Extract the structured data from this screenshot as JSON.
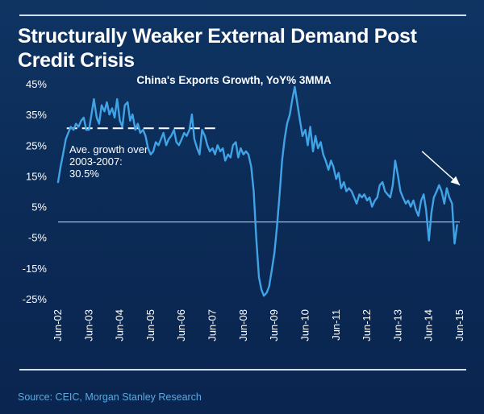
{
  "page": {
    "title": "Structurally Weaker External Demand Post Credit Crisis",
    "source": "Source: CEIC, Morgan Stanley Research"
  },
  "colors": {
    "background": "#0d2a52",
    "line": "#3fa3e6",
    "text": "#ffffff",
    "source": "#5aa9df"
  },
  "chart_data": {
    "type": "line",
    "title": "China's Exports Growth, YoY% 3MMA",
    "xlabel": "",
    "ylabel": "",
    "ylim": [
      -25,
      45
    ],
    "yticks": [
      45,
      35,
      25,
      15,
      5,
      -5,
      -15,
      -25
    ],
    "ytick_labels": [
      "45%",
      "35%",
      "25%",
      "15%",
      "5%",
      "-5%",
      "-15%",
      "-25%"
    ],
    "xlim": [
      2002.42,
      2015.42
    ],
    "xticks": [
      2002.42,
      2003.42,
      2004.42,
      2005.42,
      2006.42,
      2007.42,
      2008.42,
      2009.42,
      2010.42,
      2011.42,
      2012.42,
      2013.42,
      2014.42,
      2015.42
    ],
    "xtick_labels": [
      "Jun-02",
      "Jun-03",
      "Jun-04",
      "Jun-05",
      "Jun-06",
      "Jun-07",
      "Jun-08",
      "Jun-09",
      "Jun-10",
      "Jun-11",
      "Jun-12",
      "Jun-13",
      "Jun-14",
      "Jun-15"
    ],
    "grid": false,
    "series": [
      {
        "name": "",
        "x": [
          2002.42,
          2002.5,
          2002.58,
          2002.67,
          2002.75,
          2002.83,
          2002.92,
          2003.0,
          2003.08,
          2003.17,
          2003.25,
          2003.33,
          2003.42,
          2003.5,
          2003.58,
          2003.67,
          2003.75,
          2003.83,
          2003.92,
          2004.0,
          2004.08,
          2004.17,
          2004.25,
          2004.33,
          2004.42,
          2004.5,
          2004.58,
          2004.67,
          2004.75,
          2004.83,
          2004.92,
          2005.0,
          2005.08,
          2005.17,
          2005.25,
          2005.33,
          2005.42,
          2005.5,
          2005.58,
          2005.67,
          2005.75,
          2005.83,
          2005.92,
          2006.0,
          2006.08,
          2006.17,
          2006.25,
          2006.33,
          2006.42,
          2006.5,
          2006.58,
          2006.67,
          2006.75,
          2006.83,
          2006.92,
          2007.0,
          2007.08,
          2007.17,
          2007.25,
          2007.33,
          2007.42,
          2007.5,
          2007.58,
          2007.67,
          2007.75,
          2007.83,
          2007.92,
          2008.0,
          2008.08,
          2008.17,
          2008.25,
          2008.33,
          2008.42,
          2008.5,
          2008.58,
          2008.67,
          2008.75,
          2008.83,
          2008.92,
          2009.0,
          2009.08,
          2009.17,
          2009.25,
          2009.33,
          2009.42,
          2009.5,
          2009.58,
          2009.67,
          2009.75,
          2009.83,
          2009.92,
          2010.0,
          2010.08,
          2010.17,
          2010.25,
          2010.33,
          2010.42,
          2010.5,
          2010.58,
          2010.67,
          2010.75,
          2010.83,
          2010.92,
          2011.0,
          2011.08,
          2011.17,
          2011.25,
          2011.33,
          2011.42,
          2011.5,
          2011.58,
          2011.67,
          2011.75,
          2011.83,
          2011.92,
          2012.0,
          2012.08,
          2012.17,
          2012.25,
          2012.33,
          2012.42,
          2012.5,
          2012.58,
          2012.67,
          2012.75,
          2012.83,
          2012.92,
          2013.0,
          2013.08,
          2013.17,
          2013.25,
          2013.33,
          2013.42,
          2013.5,
          2013.58,
          2013.67,
          2013.75,
          2013.83,
          2013.92,
          2014.0,
          2014.08,
          2014.17,
          2014.25,
          2014.33,
          2014.42,
          2014.5,
          2014.58,
          2014.67,
          2014.75,
          2014.83,
          2014.92,
          2015.0,
          2015.08,
          2015.17,
          2015.25,
          2015.33
        ],
        "values": [
          13,
          18,
          22,
          27,
          29,
          31,
          30,
          32,
          31,
          33,
          34,
          30,
          30,
          35,
          40,
          34,
          32,
          38,
          36,
          39,
          35,
          37,
          34,
          40,
          33,
          31,
          38,
          39,
          33,
          35,
          30,
          32,
          29,
          30,
          28,
          24,
          22,
          23,
          26,
          25,
          27,
          29,
          25,
          27,
          28,
          30,
          26,
          25,
          27,
          29,
          28,
          30,
          35,
          27,
          24,
          22,
          30,
          28,
          25,
          23,
          24,
          22,
          25,
          23,
          24,
          20,
          22,
          21,
          25,
          26,
          21,
          24,
          22,
          23,
          22,
          18,
          10,
          -5,
          -18,
          -22,
          -24,
          -23,
          -21,
          -16,
          -10,
          -2,
          8,
          20,
          27,
          32,
          35,
          40,
          44,
          38,
          33,
          28,
          30,
          25,
          31,
          23,
          28,
          24,
          26,
          22,
          20,
          17,
          20,
          18,
          14,
          16,
          11,
          13,
          10,
          11,
          10,
          8,
          6,
          9,
          8,
          9,
          7,
          8,
          5,
          7,
          8,
          12,
          13,
          10,
          9,
          8,
          12,
          20,
          15,
          10,
          8,
          6,
          7,
          5,
          7,
          4,
          2,
          7,
          9,
          4,
          -6,
          3,
          8,
          10,
          12,
          10,
          6,
          11,
          8,
          6,
          -7,
          -1
        ]
      }
    ],
    "average_line": {
      "value": 30.5,
      "x_start": 2002.7,
      "x_end": 2007.6,
      "label_lines": [
        "Ave. growth over",
        "2003-2007:",
        "30.5%"
      ]
    },
    "trend_arrow": {
      "from": [
        2014.2,
        23
      ],
      "to": [
        2015.42,
        12
      ]
    }
  }
}
